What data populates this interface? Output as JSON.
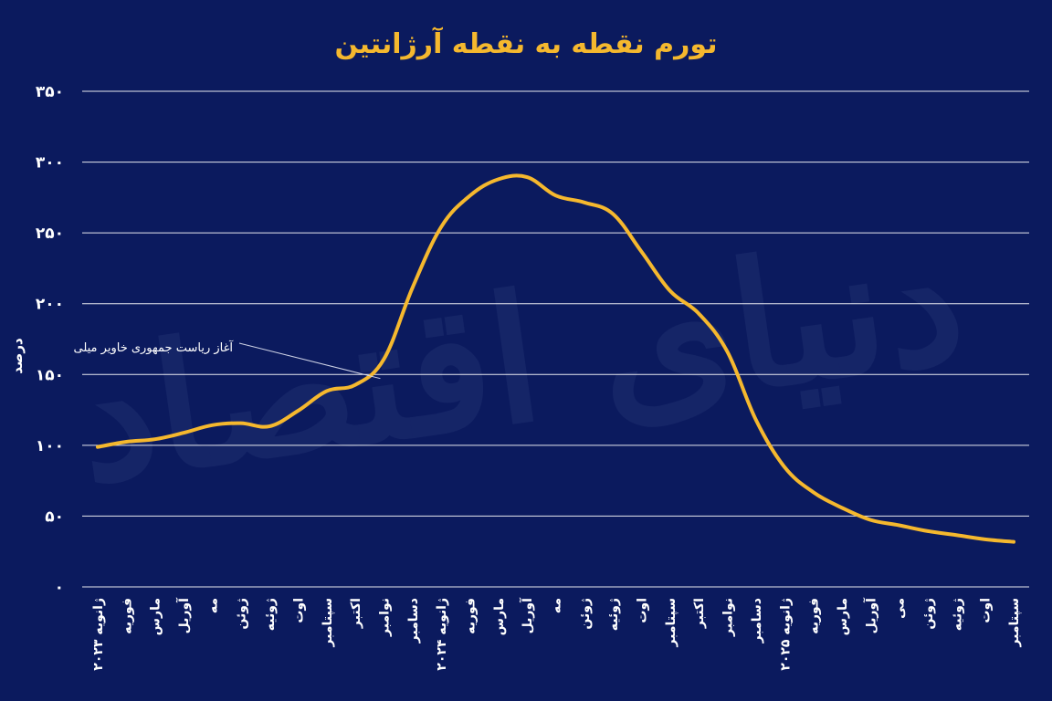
{
  "colors": {
    "background": "#0b1a5e",
    "line": "#f5b82e",
    "title": "#f5b82e",
    "grid": "#ffffff",
    "text": "#ffffff",
    "watermark": "#2a3a7a"
  },
  "watermark_text": "دنیای اقتصاد",
  "chart_data": {
    "type": "line",
    "title": "تورم نقطه به نقطه آرژانتین",
    "ylabel": "درصد",
    "xlabel": "",
    "ylim": [
      0,
      350
    ],
    "yticks": [
      "۰",
      "۵۰",
      "۱۰۰",
      "۱۵۰",
      "۲۰۰",
      "۲۵۰",
      "۳۰۰",
      "۳۵۰"
    ],
    "ytick_values": [
      0,
      50,
      100,
      150,
      200,
      250,
      300,
      350
    ],
    "grid": true,
    "categories": [
      "ژانویه ۲۰۲۳",
      "فوریه",
      "مارس",
      "آوریل",
      "مه",
      "ژوئن",
      "ژوئیه",
      "اوت",
      "سپتامبر",
      "اکتبر",
      "نوامبر",
      "دسامبر",
      "ژانویه ۲۰۲۴",
      "فوریه",
      "مارس",
      "آوریل",
      "مه",
      "ژوئن",
      "ژوئیه",
      "اوت",
      "سپتامبر",
      "اکتبر",
      "نوامبر",
      "دسامبر",
      "ژانویه ۲۰۲۵",
      "فوریه",
      "مارس",
      "آوریل",
      "می",
      "ژوئن",
      "ژوئیه",
      "اوت",
      "سپتامبر"
    ],
    "series": [
      {
        "values": [
          98.8,
          102.5,
          104.3,
          108.8,
          114.2,
          115.6,
          113.4,
          124.4,
          138.3,
          142.7,
          160.9,
          211.4,
          254.2,
          276.2,
          287.9,
          289.4,
          276.4,
          271.5,
          263.4,
          236.7,
          209.0,
          193.0,
          166.0,
          117.8,
          84.5,
          66.9,
          55.9,
          47.3,
          43.5,
          39.4,
          36.6,
          33.6,
          31.8
        ]
      }
    ],
    "annotations": [
      {
        "text": "آغاز ریاست جمهوری خاویر میلی",
        "x_index": 10,
        "y": 142
      }
    ]
  }
}
